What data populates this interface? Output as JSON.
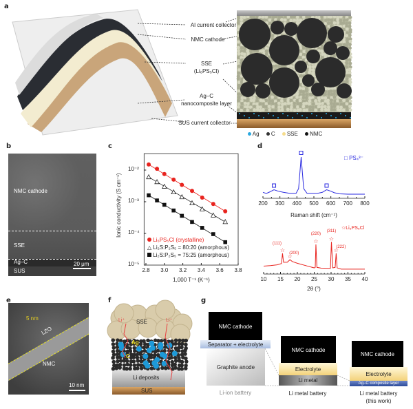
{
  "panels": {
    "a": "a",
    "b": "b",
    "c": "c",
    "d": "d",
    "e": "e",
    "f": "f",
    "g": "g"
  },
  "panel_a": {
    "labels": {
      "al": "Al current collector",
      "nmc": "NMC cathode",
      "sse": "SSE",
      "sse_formula": "(Li₆PS₅Cl)",
      "agc1": "Ag–C",
      "agc2": "nanocomposite layer",
      "sus": "SUS current collector"
    },
    "legend": [
      {
        "label": "Ag",
        "color": "#29a8e0"
      },
      {
        "label": "C",
        "color": "#333333"
      },
      {
        "label": "SSE",
        "color": "#f5dc8c"
      },
      {
        "label": "NMC",
        "color": "#111111"
      }
    ]
  },
  "panel_b": {
    "nmc": "NMC cathode",
    "sse": "SSE",
    "agc": "Ag–C",
    "sus": "SUS",
    "scale": "20 μm"
  },
  "panel_e": {
    "thickness": "5 nm",
    "lzo": "LZO",
    "nmc": "NMC",
    "scale": "10 nm"
  },
  "panel_f": {
    "sse": "SSE",
    "li1": "Li⁺",
    "li2": "Li⁺",
    "ag": "Ag",
    "c": "C",
    "li_deposits": "Li deposits",
    "sus": "SUS"
  },
  "panel_g": {
    "liion": {
      "cathode": "NMC cathode",
      "separator": "Separator + electrolyte",
      "anode": "Graphite anode",
      "caption": "Li-ion battery"
    },
    "limetal": {
      "cathode": "NMC cathode",
      "electrolyte": "Electrolyte",
      "anode": "Li metal",
      "caption": "Li metal battery"
    },
    "thiswork": {
      "cathode": "NMC cathode",
      "electrolyte": "Electrolyte",
      "layer": "Ag–C composite layer",
      "caption1": "Li metal battery",
      "caption2": "(this work)"
    }
  },
  "chart_data": [
    {
      "type": "scatter",
      "xlabel": "1,000 T⁻¹ (K⁻¹)",
      "ylabel": "Ionic conductivity (S cm⁻¹)",
      "xlim": [
        2.78,
        3.8
      ],
      "ylim": [
        1e-05,
        0.033
      ],
      "yscale": "log",
      "xticks": [
        "2.8",
        "3.0",
        "3.2",
        "3.4",
        "3.6",
        "3.8"
      ],
      "yticks": [
        "10⁻²",
        "10⁻³",
        "10⁻⁴",
        "10⁻⁵"
      ],
      "legend_position": "bottom-left",
      "x": [
        2.83,
        2.92,
        3.0,
        3.1,
        3.19,
        3.3,
        3.41,
        3.53,
        3.66
      ],
      "series": [
        {
          "name": "Li₆PS₅Cl (crystalline)",
          "color": "#e8231e",
          "marker": "circle",
          "values": [
            0.015,
            0.011,
            0.0075,
            0.005,
            0.0034,
            0.0022,
            0.00135,
            0.00085,
            0.0005
          ]
        },
        {
          "name": "Li₂S:P₂S₅ = 80:20 (amorphous)",
          "color": "#222222",
          "marker": "triangle-open",
          "values": [
            0.006,
            0.0042,
            0.003,
            0.002,
            0.0014,
            0.0009,
            0.00058,
            0.00037,
            0.00023
          ]
        },
        {
          "name": "Li₂S:P₂S₅ = 75:25 (amorphous)",
          "color": "#111111",
          "marker": "square",
          "values": [
            0.0016,
            0.0011,
            0.0008,
            0.00053,
            0.00036,
            0.00023,
            0.00015,
            9.5e-05,
            5.3e-05
          ]
        }
      ]
    },
    {
      "type": "line",
      "xlabel": "Raman shift (cm⁻¹)",
      "xlim": [
        200,
        800
      ],
      "xticks": [
        "200",
        "300",
        "400",
        "500",
        "600",
        "700",
        "800"
      ],
      "color": "#2a2ae0",
      "legend": "PS₄³⁻",
      "peaks": [
        265,
        425,
        575
      ],
      "points": [
        [
          200,
          0.05
        ],
        [
          220,
          0.02
        ],
        [
          240,
          0.06
        ],
        [
          265,
          0.12
        ],
        [
          290,
          0.08
        ],
        [
          320,
          0.05
        ],
        [
          360,
          0.02
        ],
        [
          395,
          0.02
        ],
        [
          410,
          0.15
        ],
        [
          418,
          0.6
        ],
        [
          425,
          1.0
        ],
        [
          432,
          0.6
        ],
        [
          440,
          0.15
        ],
        [
          460,
          0.02
        ],
        [
          520,
          0.02
        ],
        [
          550,
          0.05
        ],
        [
          575,
          0.12
        ],
        [
          600,
          0.08
        ],
        [
          620,
          0.04
        ],
        [
          650,
          0.01
        ],
        [
          700,
          0
        ],
        [
          800,
          0
        ]
      ]
    },
    {
      "type": "line",
      "xlabel": "2θ (°)",
      "xlim": [
        10,
        40
      ],
      "xticks": [
        "10",
        "15",
        "20",
        "25",
        "30",
        "35",
        "40"
      ],
      "color": "#e8231e",
      "legend": "Li₆PS₅Cl",
      "peaks": [
        {
          "x": 15.6,
          "hkl": "(111)",
          "y": 0.65
        },
        {
          "x": 17.8,
          "hkl": "(200)",
          "y": 0.4
        },
        {
          "x": 25.5,
          "hkl": "(220)",
          "y": 1.0
        },
        {
          "x": 30.1,
          "hkl": "(311)",
          "y": 1.1
        },
        {
          "x": 31.5,
          "hkl": "(222)",
          "y": 0.65
        }
      ],
      "points": [
        [
          10,
          0.15
        ],
        [
          12,
          0.17
        ],
        [
          14,
          0.2
        ],
        [
          15.3,
          0.25
        ],
        [
          15.6,
          0.65
        ],
        [
          15.9,
          0.3
        ],
        [
          17,
          0.3
        ],
        [
          17.8,
          0.4
        ],
        [
          18.5,
          0.33
        ],
        [
          20,
          0.26
        ],
        [
          23,
          0.15
        ],
        [
          25,
          0.08
        ],
        [
          25.3,
          0.1
        ],
        [
          25.5,
          1.0
        ],
        [
          25.8,
          0.1
        ],
        [
          27,
          0.07
        ],
        [
          29.8,
          0.06
        ],
        [
          30.1,
          1.1
        ],
        [
          30.5,
          0.08
        ],
        [
          31.2,
          0.1
        ],
        [
          31.5,
          0.65
        ],
        [
          31.8,
          0.08
        ],
        [
          33,
          0.03
        ],
        [
          40,
          0.03
        ]
      ]
    }
  ]
}
